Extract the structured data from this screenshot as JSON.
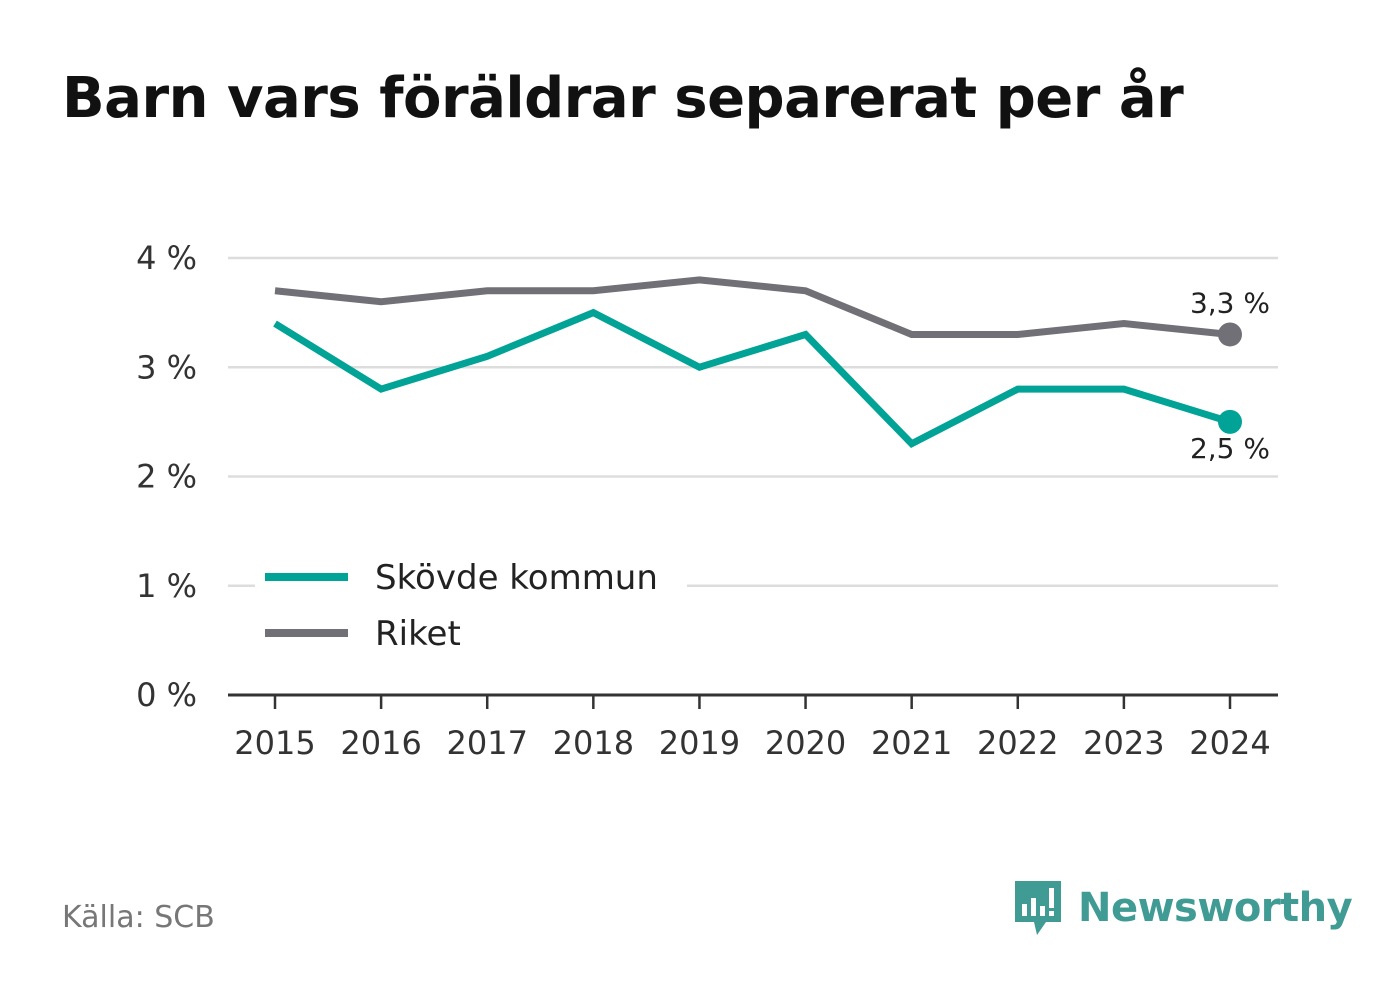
{
  "title": "Barn vars föräldrar separerat per år",
  "source": "Källa: SCB",
  "brand": {
    "name": "Newsworthy",
    "icon": "bar-chart-speech-bubble-icon"
  },
  "colors": {
    "skovde": "#00a396",
    "riket": "#717077",
    "grid": "#dddddd",
    "axis": "#333333",
    "brand": "#3f9b93"
  },
  "chart_data": {
    "type": "line",
    "title": "Barn vars föräldrar separerat per år",
    "x": [
      2015,
      2016,
      2017,
      2018,
      2019,
      2020,
      2021,
      2022,
      2023,
      2024
    ],
    "y_ticks": [
      0,
      1,
      2,
      3,
      4
    ],
    "y_tick_labels": [
      "0 %",
      "1 %",
      "2 %",
      "3 %",
      "4 %"
    ],
    "ylim": [
      0,
      4
    ],
    "grid": true,
    "legend": "bottom-left",
    "series": [
      {
        "name": "Skövde kommun",
        "color": "#00a396",
        "values": [
          3.4,
          2.8,
          3.1,
          3.5,
          3.0,
          3.3,
          2.3,
          2.8,
          2.8,
          2.5
        ],
        "end_label": "2,5 %"
      },
      {
        "name": "Riket",
        "color": "#717077",
        "values": [
          3.7,
          3.6,
          3.7,
          3.7,
          3.8,
          3.7,
          3.3,
          3.3,
          3.4,
          3.3
        ],
        "end_label": "3,3 %"
      }
    ]
  }
}
